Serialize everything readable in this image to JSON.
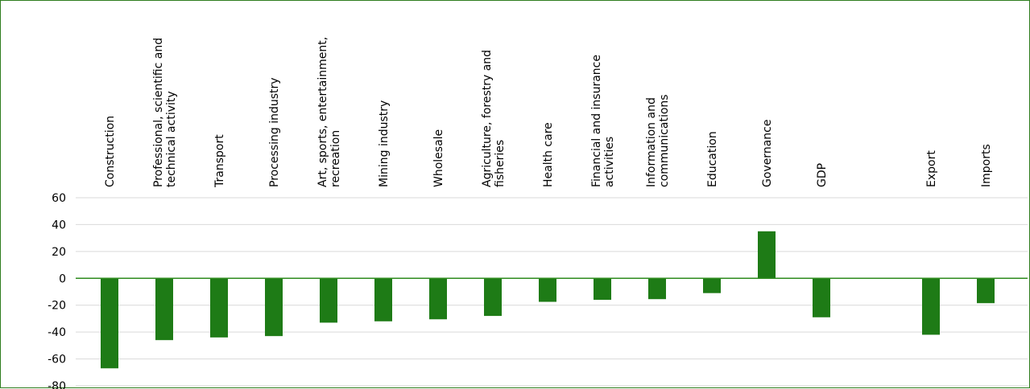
{
  "chart_data": {
    "type": "bar",
    "categories": [
      [
        "Construction"
      ],
      [
        "Professional, scientific and",
        "technical activity"
      ],
      [
        "Transport"
      ],
      [
        "Processing industry"
      ],
      [
        "Art, sports, entertainment,",
        "recreation"
      ],
      [
        "Mining industry"
      ],
      [
        "Wholesale"
      ],
      [
        "Agriculture, forestry and",
        "fisheries"
      ],
      [
        "Health care"
      ],
      [
        "Financial and insurance",
        "activities"
      ],
      [
        "Information and",
        "communications"
      ],
      [
        "Education"
      ],
      [
        "Governance"
      ],
      [
        "GDP"
      ],
      [],
      [
        "Export"
      ],
      [
        "Imports"
      ]
    ],
    "values": [
      -67,
      -46,
      -44,
      -43,
      -33,
      -32,
      -30.5,
      -28,
      -17.5,
      -16,
      -15.5,
      -11,
      35,
      -29,
      null,
      -42,
      -18.5
    ],
    "ylim": [
      -80,
      60
    ],
    "yticks": [
      60,
      40,
      20,
      0,
      -20,
      -40,
      -60,
      -80
    ],
    "grid": true,
    "bar_color": "#1e7b16",
    "zero_line_color": "#2e8b1e",
    "grid_color": "#d9d9d9",
    "frame_color": "#2e7d1e"
  }
}
